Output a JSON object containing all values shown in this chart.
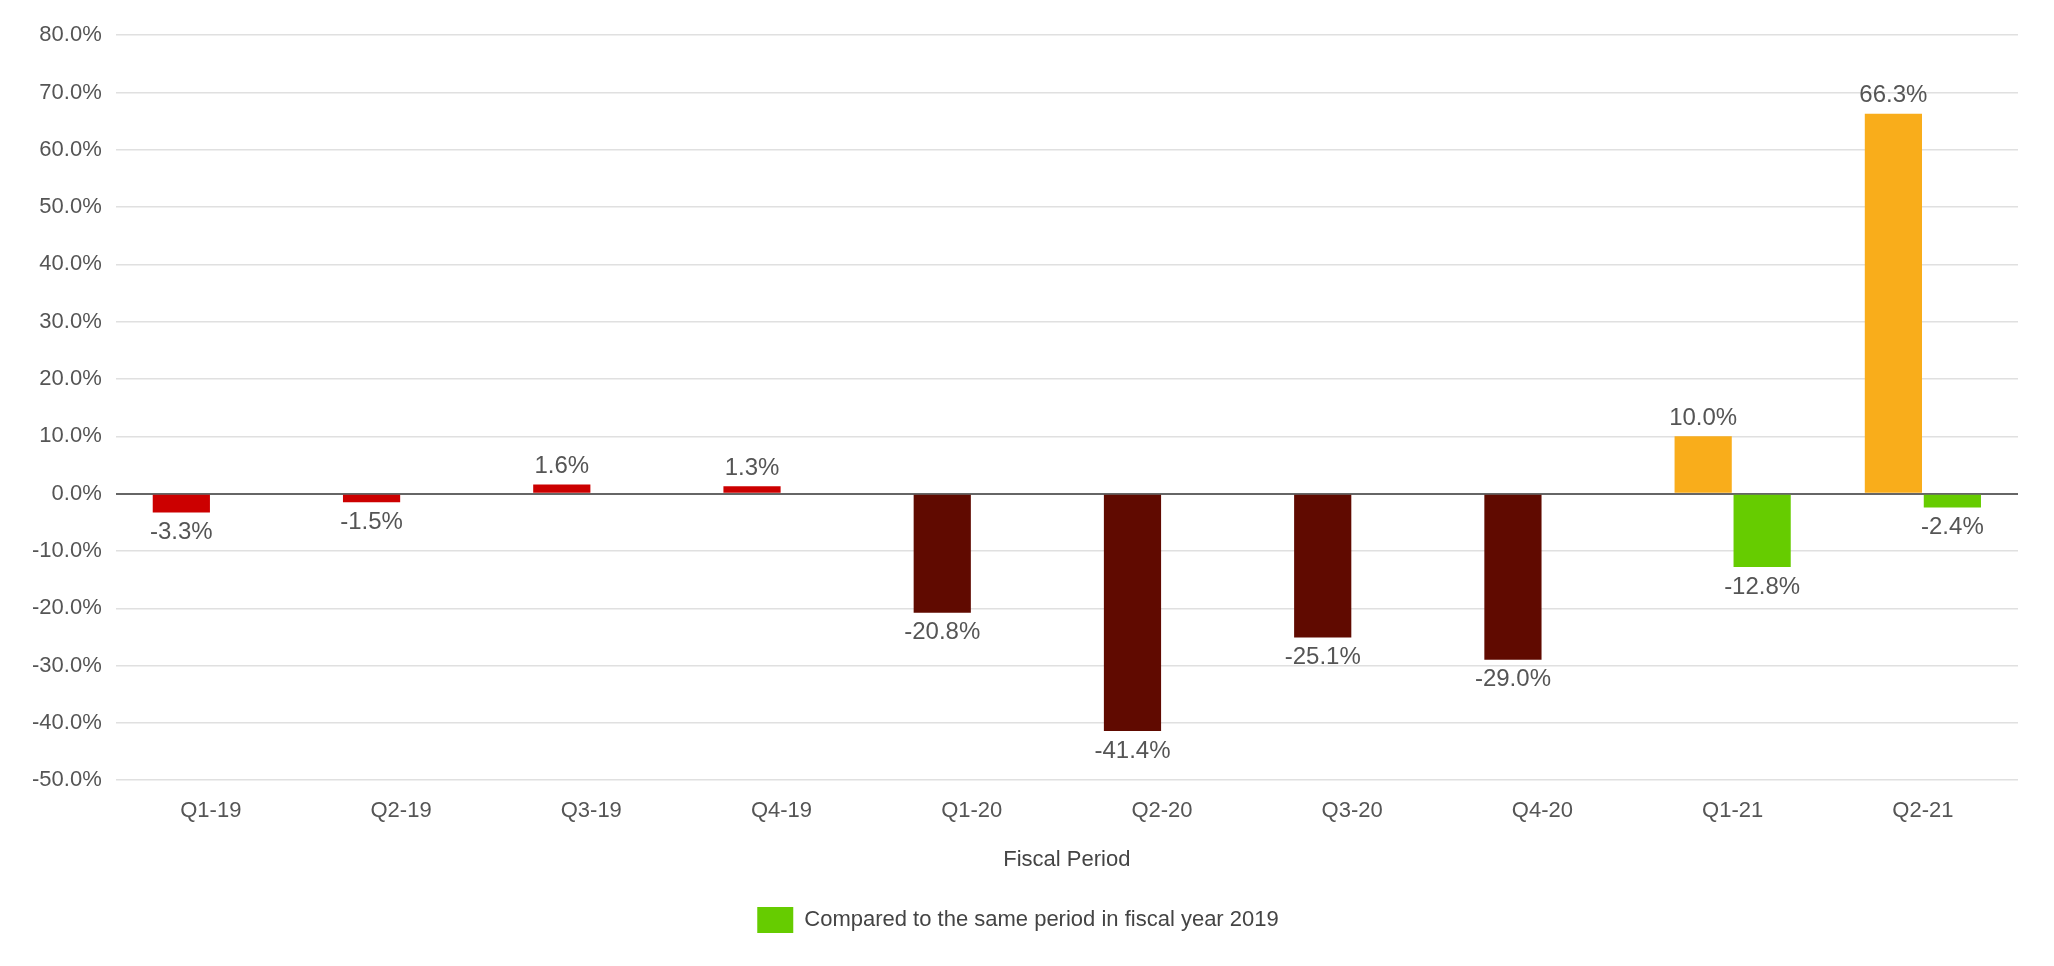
{
  "chart_data": {
    "type": "bar",
    "xlabel": "Fiscal Period",
    "categories": [
      "Q1-19",
      "Q2-19",
      "Q3-19",
      "Q4-19",
      "Q1-20",
      "Q2-20",
      "Q3-20",
      "Q4-20",
      "Q1-21",
      "Q2-21"
    ],
    "series": [
      {
        "colors": [
          "#cc0000",
          "#cc0000",
          "#cc0000",
          "#cc0000",
          "#600a00",
          "#600a00",
          "#600a00",
          "#600a00",
          "#f9ad1b",
          "#f9ad1b"
        ],
        "values": [
          -3.3,
          -1.5,
          1.6,
          1.3,
          -20.8,
          -41.4,
          -25.1,
          -29.0,
          10.0,
          66.3
        ],
        "value_labels": [
          "-3.3%",
          "-1.5%",
          "1.6%",
          "1.3%",
          "-20.8%",
          "-41.4%",
          "-25.1%",
          "-29.0%",
          "10.0%",
          "66.3%"
        ]
      },
      {
        "name": "Compared to the same period in fiscal year 2019",
        "color": "#66cc00",
        "values": [
          null,
          null,
          null,
          null,
          null,
          null,
          null,
          null,
          -12.8,
          -2.4
        ],
        "value_labels": [
          null,
          null,
          null,
          null,
          null,
          null,
          null,
          null,
          "-12.8%",
          "-2.4%"
        ]
      }
    ],
    "ylim": [
      -50,
      80
    ],
    "yticks": [
      {
        "value": -50,
        "label": "-50.0%"
      },
      {
        "value": -40,
        "label": "-40.0%"
      },
      {
        "value": -30,
        "label": "-30.0%"
      },
      {
        "value": -20,
        "label": "-20.0%"
      },
      {
        "value": -10,
        "label": "-10.0%"
      },
      {
        "value": 0,
        "label": "0.0%"
      },
      {
        "value": 10,
        "label": "10.0%"
      },
      {
        "value": 20,
        "label": "20.0%"
      },
      {
        "value": 30,
        "label": "30.0%"
      },
      {
        "value": 40,
        "label": "40.0%"
      },
      {
        "value": 50,
        "label": "50.0%"
      },
      {
        "value": 60,
        "label": "60.0%"
      },
      {
        "value": 70,
        "label": "70.0%"
      },
      {
        "value": 80,
        "label": "80.0%"
      }
    ],
    "grid": "y",
    "legend": "bottom"
  }
}
